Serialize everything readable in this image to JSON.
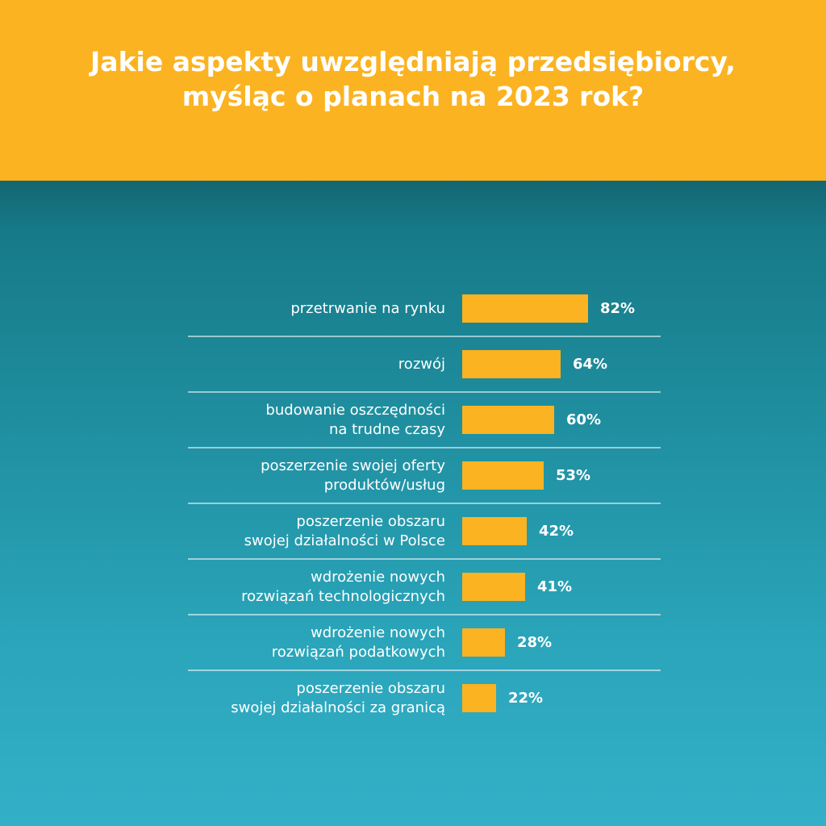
{
  "header": {
    "title_line1": "Jakie aspekty uwzględniają przedsiębiorcy,",
    "title_line2": "myśląc o planach na 2023 rok?"
  },
  "colors": {
    "header_bg": "#FBB321",
    "bar": "#FBB321",
    "panel_top": "#157481",
    "panel_bottom": "#33b0c8"
  },
  "chart_data": {
    "type": "bar",
    "orientation": "horizontal",
    "title": "Jakie aspekty uwzględniają przedsiębiorcy, myśląc o planach na 2023 rok?",
    "categories": [
      "przetrwanie na rynku",
      "rozwój",
      "budowanie oszczędności\nna trudne czasy",
      "poszerzenie swojej oferty\nproduktów/usług",
      "poszerzenie obszaru\nswojej działalności w Polsce",
      "wdrożenie nowych\nrozwiązań technologicznych",
      "wdrożenie nowych\nrozwiązań podatkowych",
      "poszerzenie obszaru\nswojej działalności za granicą"
    ],
    "values": [
      82,
      64,
      60,
      53,
      42,
      41,
      28,
      22
    ],
    "value_labels": [
      "82%",
      "64%",
      "60%",
      "53%",
      "42%",
      "41%",
      "28%",
      "22%"
    ],
    "xlim": [
      0,
      100
    ],
    "grid": false,
    "legend": "none"
  }
}
